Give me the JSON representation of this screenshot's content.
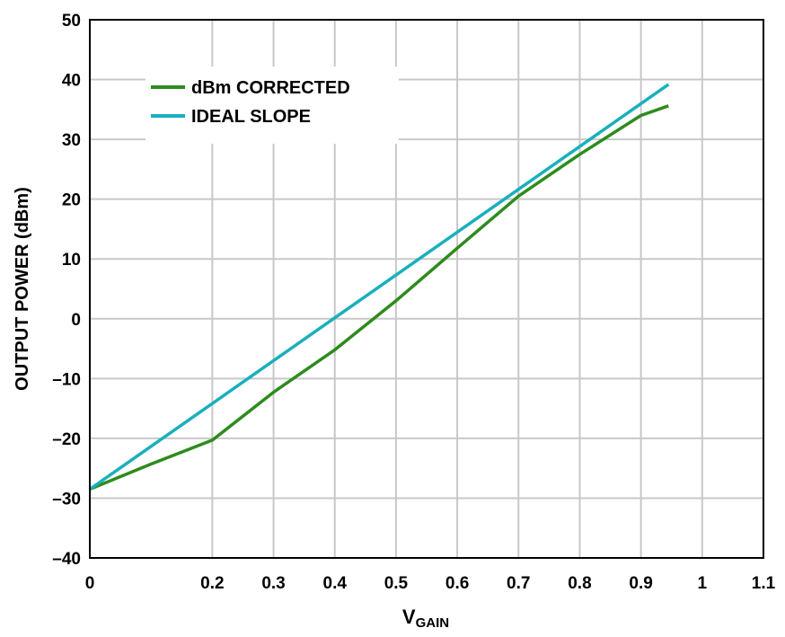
{
  "chart_data": {
    "type": "line",
    "xlabel": {
      "main": "V",
      "sub": "GAIN"
    },
    "ylabel": "OUTPUT POWER (dBm)",
    "xlim": [
      0,
      1.1
    ],
    "ylim": [
      -40,
      50
    ],
    "xticks": [
      0,
      0.2,
      0.3,
      0.4,
      0.5,
      0.6,
      0.7,
      0.8,
      0.9,
      1,
      1.1
    ],
    "xtick_labels": [
      "0",
      "0.2",
      "0.3",
      "0.4",
      "0.5",
      "0.6",
      "0.7",
      "0.8",
      "0.9",
      "1",
      "1.1"
    ],
    "yticks": [
      -40,
      -30,
      -20,
      -10,
      0,
      10,
      20,
      30,
      40,
      50
    ],
    "ytick_labels": [
      "–40",
      "–30",
      "–20",
      "–10",
      "0",
      "10",
      "20",
      "30",
      "40",
      "50"
    ],
    "grid": true,
    "legend_position": "top-left",
    "series": [
      {
        "name": "dBm CORRECTED",
        "color": "#2e8b1e",
        "points": [
          [
            0,
            -28.5
          ],
          [
            0.1,
            -24.3
          ],
          [
            0.2,
            -20.3
          ],
          [
            0.3,
            -12.3
          ],
          [
            0.4,
            -5.2
          ],
          [
            0.5,
            3.0
          ],
          [
            0.6,
            11.8
          ],
          [
            0.7,
            20.5
          ],
          [
            0.8,
            27.5
          ],
          [
            0.9,
            34.0
          ],
          [
            0.945,
            35.6
          ]
        ]
      },
      {
        "name": "IDEAL SLOPE",
        "color": "#1aafbd",
        "points": [
          [
            0,
            -28.5
          ],
          [
            0.945,
            39.2
          ]
        ]
      }
    ]
  }
}
